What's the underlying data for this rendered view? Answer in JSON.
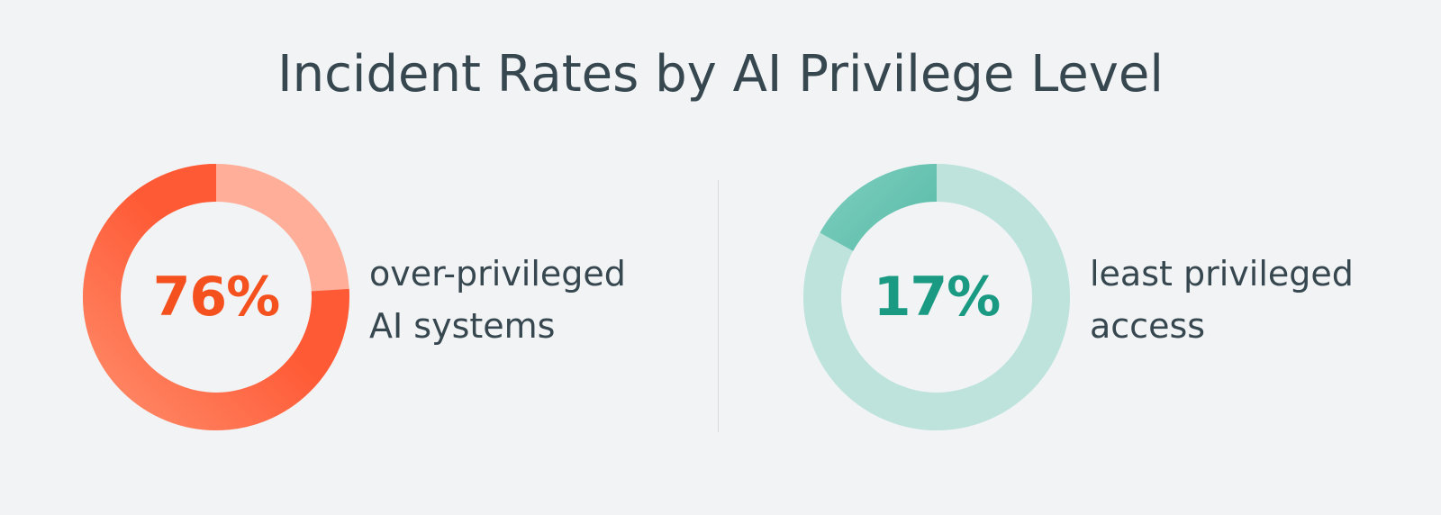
{
  "chart_data": {
    "type": "pie",
    "title": "Incident Rates by AI Privilege Level",
    "items": [
      {
        "value": 76,
        "display": "76%",
        "label_line1": "over-privileged",
        "label_line2": "AI systems",
        "color": "#ff5a36",
        "color_light": "#ff8a68",
        "track_color": "#ffae99",
        "text_color": "#f4511e"
      },
      {
        "value": 17,
        "display": "17%",
        "label_line1": "least privileged",
        "label_line2": "access",
        "color": "#1f9e87",
        "color_light": "#7ccdbd",
        "track_color": "#bde3dc",
        "text_color": "#1a9a82"
      }
    ]
  }
}
